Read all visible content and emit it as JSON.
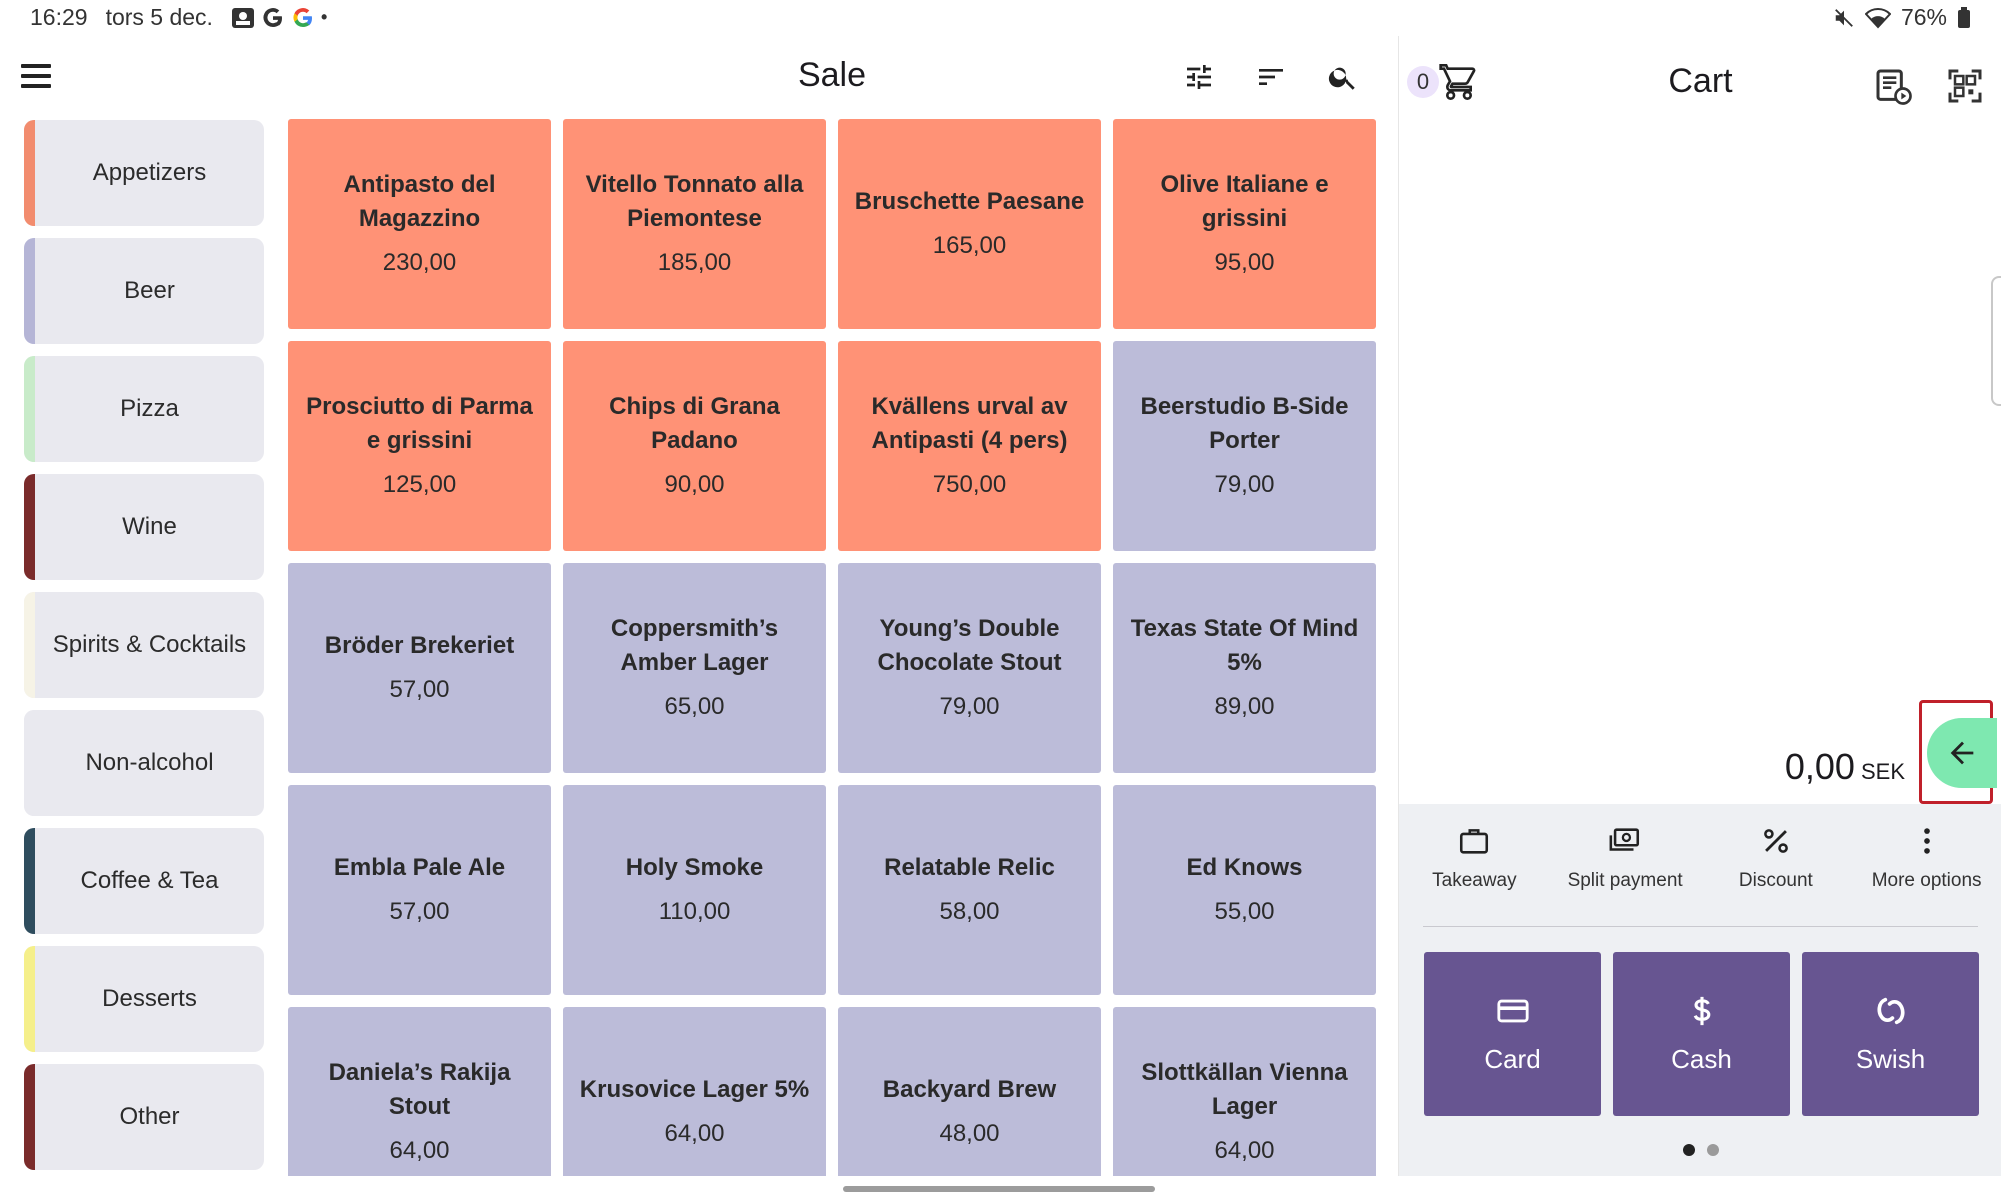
{
  "status": {
    "time": "16:29",
    "date": "tors 5 dec.",
    "battery": "76%"
  },
  "sale": {
    "title": "Sale",
    "categories": [
      {
        "label": "Appetizers",
        "color": "#f28c6e"
      },
      {
        "label": "Beer",
        "color": "#b5b5d6"
      },
      {
        "label": "Pizza",
        "color": "#c8ebc9"
      },
      {
        "label": "Wine",
        "color": "#7a2b2b"
      },
      {
        "label": "Spirits & Cocktails",
        "color": "#f6f3e6"
      },
      {
        "label": "Non-alcohol",
        "color": "#e9e9ef"
      },
      {
        "label": "Coffee & Tea",
        "color": "#2f4d5e"
      },
      {
        "label": "Desserts",
        "color": "#f5ef8a"
      },
      {
        "label": "Other",
        "color": "#7a2b2b"
      }
    ],
    "products": [
      {
        "name": "Antipasto del Magazzino",
        "price": "230,00",
        "color": "#ff9276"
      },
      {
        "name": "Vitello Tonnato alla Piemontese",
        "price": "185,00",
        "color": "#ff9276"
      },
      {
        "name": "Bruschette Paesane",
        "price": "165,00",
        "color": "#ff9276"
      },
      {
        "name": "Olive Italiane e grissini",
        "price": "95,00",
        "color": "#ff9276"
      },
      {
        "name": "Prosciutto di Parma e grissini",
        "price": "125,00",
        "color": "#ff9276"
      },
      {
        "name": "Chips di Grana Padano",
        "price": "90,00",
        "color": "#ff9276"
      },
      {
        "name": "Kvällens urval av Antipasti (4 pers)",
        "price": "750,00",
        "color": "#ff9276"
      },
      {
        "name": "Beerstudio B-Side Porter",
        "price": "79,00",
        "color": "#bcbcd9"
      },
      {
        "name": "Bröder Brekeriet",
        "price": "57,00",
        "color": "#bcbcd9"
      },
      {
        "name": "Coppersmith’s Amber Lager",
        "price": "65,00",
        "color": "#bcbcd9"
      },
      {
        "name": "Young’s Double Chocolate Stout",
        "price": "79,00",
        "color": "#bcbcd9"
      },
      {
        "name": "Texas State Of Mind 5%",
        "price": "89,00",
        "color": "#bcbcd9"
      },
      {
        "name": "Embla Pale Ale",
        "price": "57,00",
        "color": "#bcbcd9"
      },
      {
        "name": "Holy Smoke",
        "price": "110,00",
        "color": "#bcbcd9"
      },
      {
        "name": "Relatable Relic",
        "price": "58,00",
        "color": "#bcbcd9"
      },
      {
        "name": "Ed Knows",
        "price": "55,00",
        "color": "#bcbcd9"
      },
      {
        "name": "Daniela’s Rakija Stout",
        "price": "64,00",
        "color": "#bcbcd9"
      },
      {
        "name": "Krusovice Lager 5%",
        "price": "64,00",
        "color": "#bcbcd9"
      },
      {
        "name": "Backyard Brew",
        "price": "48,00",
        "color": "#bcbcd9"
      },
      {
        "name": "Slottkällan Vienna Lager",
        "price": "64,00",
        "color": "#bcbcd9"
      }
    ]
  },
  "cart": {
    "title": "Cart",
    "count": "0",
    "total": "0,00",
    "currency": "SEK",
    "actions": [
      {
        "label": "Takeaway",
        "icon": "briefcase-icon"
      },
      {
        "label": "Split payment",
        "icon": "split-payment-icon"
      },
      {
        "label": "Discount",
        "icon": "percent-icon"
      },
      {
        "label": "More options",
        "icon": "more-vert-icon"
      }
    ],
    "payments": [
      {
        "label": "Card",
        "icon": "credit-card-icon"
      },
      {
        "label": "Cash",
        "icon": "dollar-icon"
      },
      {
        "label": "Swish",
        "icon": "swish-icon"
      }
    ],
    "page_dots": {
      "count": 2,
      "active": 1
    }
  },
  "colors": {
    "accent_purple": "#675591",
    "fab_green": "#7ee8b0",
    "highlight_red": "#c0202a"
  }
}
